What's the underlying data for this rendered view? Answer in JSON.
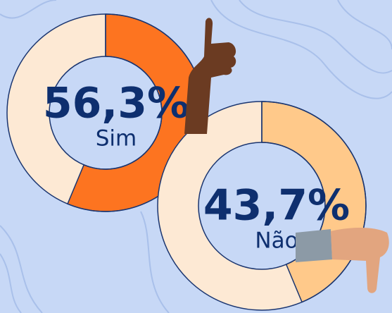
{
  "chart_data": [
    {
      "type": "donut",
      "categories": [
        "Sim"
      ],
      "values": [
        56.3
      ],
      "value_labels": [
        "56,3%"
      ],
      "color": "#fd7420",
      "track_color": "#fde9d4"
    },
    {
      "type": "donut",
      "categories": [
        "Não"
      ],
      "values": [
        43.7
      ],
      "value_labels": [
        "43,7%"
      ],
      "color": "#ffc98a",
      "track_color": "#fde9d4"
    }
  ]
}
